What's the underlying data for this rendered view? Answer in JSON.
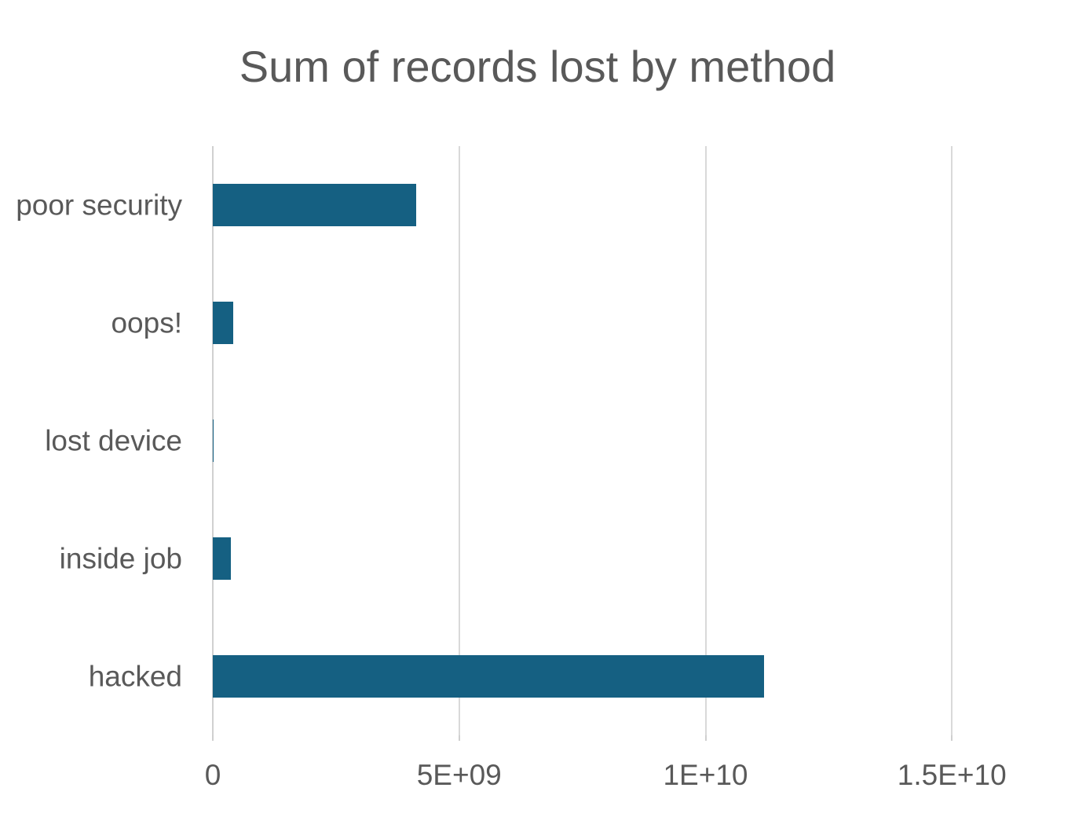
{
  "chart_data": {
    "type": "bar",
    "orientation": "horizontal",
    "title": "Sum of records lost by method",
    "categories": [
      "poor security",
      "oops!",
      "lost device",
      "inside job",
      "hacked"
    ],
    "values": [
      4120000000,
      420000000,
      20000000,
      360000000,
      11180000000
    ],
    "x_tick_labels": [
      "0",
      "5E+09",
      "1E+10",
      "1.5E+10"
    ],
    "x_tick_values": [
      0,
      5000000000,
      10000000000,
      15000000000
    ],
    "xlim": [
      0,
      16000000000
    ],
    "xlabel": "",
    "ylabel": "",
    "grid": true,
    "legend": false,
    "colors": {
      "bar": "#156082",
      "gridline": "#D9D9D9",
      "zero_axis_line": "#D0D0D0",
      "tick": "#CFCFCF",
      "text": "#595959",
      "background": "#FFFFFF"
    }
  }
}
